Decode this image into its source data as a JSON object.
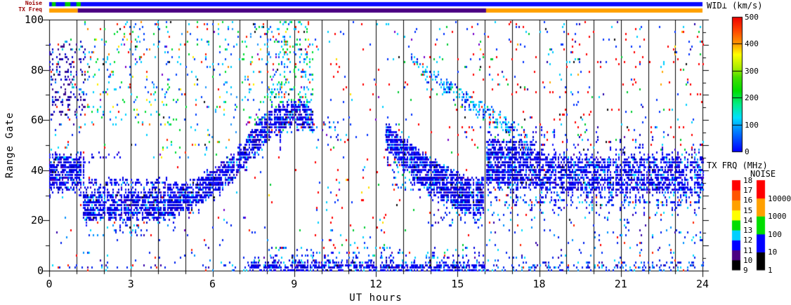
{
  "labels": {
    "noise_strip": "Noise",
    "txfreq_strip": "TX Freq",
    "wid_title": "WID⊥ (km/s)",
    "txfrq_title": "TX FRQ (MHz)",
    "noise_title": "NOISE",
    "xlabel": "UT hours",
    "ylabel": "Range Gate"
  },
  "axes": {
    "x": {
      "min": 0,
      "max": 24,
      "major_ticks": [
        0,
        3,
        6,
        9,
        12,
        15,
        18,
        21,
        24
      ],
      "minor_every": 1
    },
    "y": {
      "min": 0,
      "max": 100,
      "major_ticks": [
        0,
        20,
        40,
        60,
        80,
        100
      ],
      "minor_every": 10
    }
  },
  "strips": {
    "noise": {
      "base": "#0A0AFF",
      "marks": [
        {
          "h0": 0.1,
          "h1": 0.24,
          "color": "#00CC00"
        },
        {
          "h0": 0.58,
          "h1": 0.78,
          "color": "#00CC00"
        },
        {
          "h0": 1.0,
          "h1": 1.16,
          "color": "#00CC00"
        }
      ]
    },
    "txfreq": {
      "segments": [
        {
          "h0": 0,
          "h1": 1.05,
          "color": "#FFA000"
        },
        {
          "h0": 1.05,
          "h1": 16.05,
          "color": "#4B0082"
        },
        {
          "h0": 16.05,
          "h1": 24,
          "color": "#FFA000"
        }
      ]
    }
  },
  "colorbars": {
    "wid": {
      "label": "WID⊥ (km/s)",
      "ticks": [
        0,
        100,
        200,
        300,
        400,
        500
      ],
      "stops": [
        [
          0,
          "#0000FF"
        ],
        [
          0.15,
          "#0080FF"
        ],
        [
          0.25,
          "#00E0FF"
        ],
        [
          0.35,
          "#00EE88"
        ],
        [
          0.45,
          "#00DD00"
        ],
        [
          0.55,
          "#44DD00"
        ],
        [
          0.62,
          "#AAEE00"
        ],
        [
          0.72,
          "#FFFF00"
        ],
        [
          0.8,
          "#FF9900"
        ],
        [
          0.9,
          "#FF4400"
        ],
        [
          1,
          "#EE0000"
        ]
      ]
    },
    "txfrq": {
      "label": "TX FRQ (MHz)",
      "tick_labels": [
        9,
        10,
        11,
        12,
        13,
        14,
        15,
        16,
        17,
        18
      ],
      "segment_colors": [
        "#000000",
        "#4B0082",
        "#0000FF",
        "#00CFFF",
        "#00DD00",
        "#FFFF00",
        "#FFA000",
        "#FF5500",
        "#FF0000"
      ]
    },
    "noise": {
      "label": "NOISE",
      "tick_labels": [
        "1",
        "10",
        "100",
        "1000",
        "10000"
      ],
      "segment_colors": [
        "#000000",
        "#0000FF",
        "#00DD00",
        "#FFA000",
        "#FF0000"
      ]
    }
  },
  "chart_data": {
    "type": "heatmap",
    "title": "",
    "xlabel": "UT hours",
    "ylabel": "Range Gate",
    "x_range": [
      0,
      24
    ],
    "y_range": [
      0,
      100
    ],
    "colorbar_range_km_s": [
      0,
      500
    ],
    "seed": 1337,
    "cell": {
      "w": 2,
      "h": 3,
      "dt_hours": 0.0516
    },
    "palettes": {
      "dense_blue": [
        [
          "#0000EE",
          0.5
        ],
        [
          "#1A1AFF",
          0.16
        ],
        [
          "#0000B8",
          0.12
        ],
        [
          "#3A00C8",
          0.07
        ],
        [
          "#0090FF",
          0.06
        ],
        [
          "#00D8FF",
          0.04
        ],
        [
          "#5500AA",
          0.03
        ],
        [
          "#101010",
          0.02
        ]
      ],
      "purple_blue": [
        [
          "#3A0A8C",
          0.34
        ],
        [
          "#0000CC",
          0.28
        ],
        [
          "#1E00A0",
          0.2
        ],
        [
          "#0080FF",
          0.06
        ],
        [
          "#00C8D8",
          0.06
        ],
        [
          "#101010",
          0.03
        ],
        [
          "#FF2000",
          0.03
        ]
      ],
      "multi": [
        [
          "#00CFFF",
          0.28
        ],
        [
          "#00DD33",
          0.24
        ],
        [
          "#0044FF",
          0.16
        ],
        [
          "#2299FF",
          0.08
        ],
        [
          "#FF2200",
          0.1
        ],
        [
          "#FFEE00",
          0.04
        ],
        [
          "#FF8800",
          0.03
        ],
        [
          "#7700CC",
          0.04
        ],
        [
          "#101010",
          0.03
        ]
      ],
      "sparse_mixed": [
        [
          "#FF0000",
          0.34
        ],
        [
          "#0033FF",
          0.24
        ],
        [
          "#00CFFF",
          0.18
        ],
        [
          "#00CC33",
          0.12
        ],
        [
          "#7700CC",
          0.05
        ],
        [
          "#FFDD00",
          0.04
        ],
        [
          "#101010",
          0.03
        ]
      ],
      "red_blue": [
        [
          "#FF0000",
          0.42
        ],
        [
          "#0033FF",
          0.24
        ],
        [
          "#00CFFF",
          0.14
        ],
        [
          "#00CC33",
          0.08
        ],
        [
          "#2200AA",
          0.06
        ],
        [
          "#FFAA00",
          0.03
        ],
        [
          "#101010",
          0.03
        ]
      ],
      "blue_sparse": [
        [
          "#0022EE",
          0.48
        ],
        [
          "#0090FF",
          0.2
        ],
        [
          "#00DCFF",
          0.15
        ],
        [
          "#3300AA",
          0.1
        ],
        [
          "#FF2200",
          0.07
        ]
      ],
      "cyan_blue": [
        [
          "#00CFFF",
          0.4
        ],
        [
          "#0055FF",
          0.3
        ],
        [
          "#0000DD",
          0.2
        ],
        [
          "#00DD66",
          0.05
        ],
        [
          "#FF2200",
          0.05
        ]
      ]
    },
    "bands": [
      {
        "name": "dawn-block",
        "palette": "dense_blue",
        "density": 0.8,
        "streak_p": 0.2,
        "streak_len": 5,
        "streak_dir": "down",
        "points": [
          [
            0,
            39,
            7
          ],
          [
            1.25,
            39,
            7
          ]
        ]
      },
      {
        "name": "morning-band",
        "palette": "dense_blue",
        "density": 0.78,
        "streak_p": 0.28,
        "streak_len": 7,
        "streak_dir": "down",
        "points": [
          [
            1.25,
            26,
            5.5
          ],
          [
            4.2,
            26,
            5.5
          ],
          [
            5,
            29,
            5
          ],
          [
            6,
            35,
            5
          ],
          [
            6.6,
            40,
            5
          ],
          [
            7.2,
            47,
            5
          ],
          [
            8,
            57,
            6
          ],
          [
            8.7,
            62,
            5
          ],
          [
            9.3,
            62,
            5
          ],
          [
            9.7,
            60,
            4
          ]
        ]
      },
      {
        "name": "thin-band",
        "palette": "dense_blue",
        "density": 0.5,
        "streak_p": 0,
        "streak_len": 0,
        "streak_dir": "down",
        "points": [
          [
            1.25,
            34.5,
            1.3
          ],
          [
            4.3,
            34.5,
            1.3
          ],
          [
            5,
            31.5,
            1
          ]
        ]
      },
      {
        "name": "thin-dash",
        "palette": "dense_blue",
        "density": 0.25,
        "streak_p": 0,
        "streak_len": 0,
        "streak_dir": "down",
        "points": [
          [
            1.3,
            45,
            1
          ],
          [
            2.6,
            45,
            1
          ]
        ]
      },
      {
        "name": "noon-descent",
        "palette": "dense_blue",
        "density": 0.85,
        "streak_p": 0.3,
        "streak_len": 6,
        "streak_dir": "down",
        "points": [
          [
            12.35,
            54,
            5
          ],
          [
            13,
            46,
            6
          ],
          [
            14,
            37,
            7
          ],
          [
            15,
            31,
            7
          ],
          [
            15.95,
            29,
            7
          ]
        ]
      },
      {
        "name": "upper-descent",
        "palette": "cyan_blue",
        "density": 0.45,
        "streak_p": 0.15,
        "streak_len": 3,
        "streak_dir": "down",
        "points": [
          [
            13.3,
            84,
            2
          ],
          [
            14,
            78,
            2.5
          ],
          [
            15,
            70,
            2.5
          ],
          [
            16,
            63,
            3
          ],
          [
            16.6,
            59,
            3
          ],
          [
            17.6,
            52,
            4
          ]
        ]
      },
      {
        "name": "evening-band",
        "palette": "dense_blue",
        "density": 0.68,
        "streak_p": 0.45,
        "streak_len": 10,
        "streak_dir": "both",
        "points": [
          [
            16.05,
            44,
            8
          ],
          [
            17,
            42,
            8
          ],
          [
            18,
            40,
            7
          ],
          [
            19,
            38,
            7
          ],
          [
            20.5,
            38,
            7
          ],
          [
            22,
            38,
            7
          ],
          [
            24,
            38,
            7
          ]
        ]
      },
      {
        "name": "ground-strip-day",
        "palette": "dense_blue",
        "density": 0.75,
        "streak_p": 0.35,
        "streak_len": 5,
        "streak_dir": "up",
        "points": [
          [
            7.3,
            1,
            1.5
          ],
          [
            16,
            1,
            2
          ]
        ]
      },
      {
        "name": "ground-strip-night",
        "palette": "blue_sparse",
        "density": 0.3,
        "streak_p": 0.2,
        "streak_len": 3,
        "streak_dir": "up",
        "points": [
          [
            16.05,
            1,
            1.5
          ],
          [
            24,
            1,
            1.5
          ]
        ]
      },
      {
        "name": "ground-strip-early",
        "palette": "blue_sparse",
        "density": 0.12,
        "streak_p": 0.1,
        "streak_len": 2,
        "streak_dir": "up",
        "points": [
          [
            0,
            1,
            1
          ],
          [
            7.3,
            1,
            1
          ]
        ]
      }
    ],
    "scatter_regions": [
      {
        "h0": 0,
        "h1": 24,
        "g0": 2,
        "g1": 101,
        "density": 0.004,
        "palette": "sparse_mixed"
      },
      {
        "h0": 0,
        "h1": 1.3,
        "g0": 62,
        "g1": 92,
        "density": 0.2,
        "palette": "purple_blue"
      },
      {
        "h0": 0,
        "h1": 1.3,
        "g0": 48,
        "g1": 62,
        "density": 0.05,
        "palette": "blue_sparse"
      },
      {
        "h0": 1.3,
        "h1": 8,
        "g0": 58,
        "g1": 100,
        "density": 0.07,
        "palette": "multi"
      },
      {
        "h0": 4,
        "h1": 8,
        "g0": 45,
        "g1": 58,
        "density": 0.05,
        "palette": "multi"
      },
      {
        "h0": 8,
        "h1": 9.7,
        "g0": 55,
        "g1": 101,
        "density": 0.2,
        "palette": "multi"
      },
      {
        "h0": 9.7,
        "h1": 12.35,
        "g0": 3,
        "g1": 101,
        "density": 0.02,
        "palette": "sparse_mixed"
      },
      {
        "h0": 12.35,
        "h1": 16,
        "g0": 58,
        "g1": 101,
        "density": 0.025,
        "palette": "sparse_mixed"
      },
      {
        "h0": 12.35,
        "h1": 16,
        "g0": 40,
        "g1": 58,
        "density": 0.04,
        "palette": "sparse_mixed"
      },
      {
        "h0": 16.05,
        "h1": 24,
        "g0": 48,
        "g1": 101,
        "density": 0.035,
        "palette": "red_blue"
      },
      {
        "h0": 16.05,
        "h1": 24,
        "g0": 3,
        "g1": 28,
        "density": 0.045,
        "palette": "blue_sparse"
      },
      {
        "h0": 0,
        "h1": 8,
        "g0": 3,
        "g1": 22,
        "density": 0.015,
        "palette": "blue_sparse"
      },
      {
        "h0": 1.4,
        "h1": 3.8,
        "g0": 14,
        "g1": 21,
        "density": 0.1,
        "palette": "blue_sparse"
      },
      {
        "h0": 12.6,
        "h1": 13.4,
        "g0": 32,
        "g1": 50,
        "density": 0.22,
        "palette": "cyan_blue"
      },
      {
        "h0": 13.8,
        "h1": 16,
        "g0": 18,
        "g1": 24,
        "density": 0.1,
        "palette": "blue_sparse"
      },
      {
        "h0": 9.7,
        "h1": 10.6,
        "g0": 52,
        "g1": 62,
        "density": 0.1,
        "palette": "blue_sparse"
      },
      {
        "h0": 8,
        "h1": 16,
        "g0": 3,
        "g1": 10,
        "density": 0.1,
        "palette": "cyan_blue"
      },
      {
        "h0": 16.2,
        "h1": 24,
        "g0": 26,
        "g1": 33,
        "density": 0.1,
        "palette": "blue_sparse"
      },
      {
        "h0": 16.05,
        "h1": 17.9,
        "g0": 33,
        "g1": 52,
        "density": 0.35,
        "palette": "dense_blue"
      }
    ]
  }
}
